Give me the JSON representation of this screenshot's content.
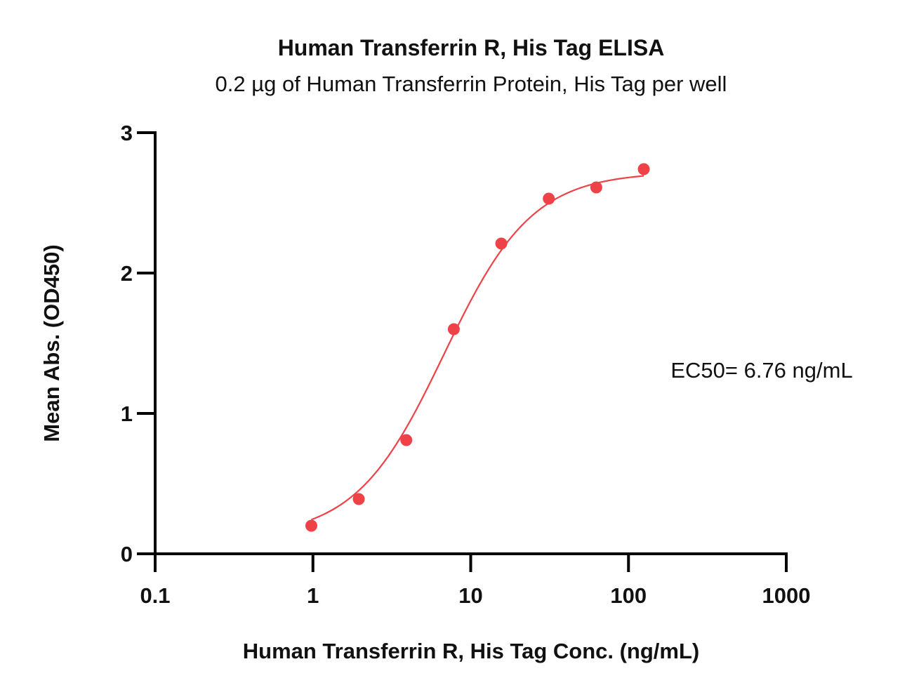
{
  "chart_data": {
    "type": "scatter",
    "title": "Human Transferrin R, His Tag ELISA",
    "subtitle": "0.2 µg of Human Transferrin Protein, His Tag per well",
    "xlabel": "Human Transferrin R, His Tag Conc. (ng/mL)",
    "ylabel": "Mean Abs. (OD450)",
    "x_scale": "log",
    "xlim": [
      0.1,
      1000
    ],
    "ylim": [
      0,
      3
    ],
    "x_ticks": [
      "0.1",
      "1",
      "10",
      "100",
      "1000"
    ],
    "x_tick_values": [
      0.1,
      1,
      10,
      100,
      1000
    ],
    "y_ticks": [
      "0",
      "1",
      "2",
      "3"
    ],
    "y_tick_values": [
      0,
      1,
      2,
      3
    ],
    "grid": false,
    "series": [
      {
        "x": [
          0.977,
          1.953,
          3.906,
          7.813,
          15.625,
          31.25,
          62.5,
          125
        ],
        "y": [
          0.2,
          0.39,
          0.81,
          1.6,
          2.21,
          2.53,
          2.61,
          2.74
        ],
        "color": "#ef4148",
        "fit": "four-parameter logistic"
      }
    ],
    "annotation": "EC50= 6.76 ng/mL"
  }
}
